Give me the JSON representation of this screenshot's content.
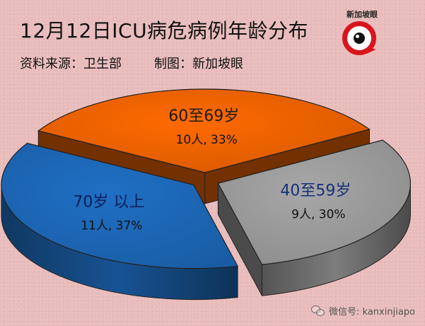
{
  "title": "12月12日ICU病危病例年龄分布",
  "source": {
    "data_source": "资料来源：卫生部",
    "made_by": "制图：新加坡眼"
  },
  "logo": {
    "text": "新加坡眼"
  },
  "watermark": {
    "text": "微信号: kanxinjiapo",
    "icon": "wechat-icon"
  },
  "colors": {
    "orange": "#ff6a00",
    "gray": "#a7a7a7",
    "blue": "#1f6fc4",
    "logo_red": "#d8151c"
  },
  "chart_data": {
    "type": "pie",
    "style": "3d-exploded",
    "slices": [
      {
        "label": "60至69岁",
        "count": 10,
        "value_label": "10人, 33%",
        "percent": 33,
        "color": "#ff6a00"
      },
      {
        "label": "40至59岁",
        "count": 9,
        "value_label": "9人, 30%",
        "percent": 30,
        "color": "#a7a7a7"
      },
      {
        "label": "70岁 以上",
        "count": 11,
        "value_label": "11人, 37%",
        "percent": 37,
        "color": "#1f6fc4"
      }
    ]
  }
}
